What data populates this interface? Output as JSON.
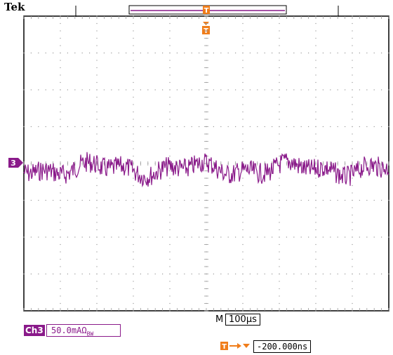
{
  "brand": "Tek",
  "channel": {
    "id": "3",
    "label": "Ch3",
    "scale": "50.0mAΩ",
    "bw_symbol": "BW",
    "color": "#8a1a8a"
  },
  "timebase": {
    "prefix": "M",
    "value": "100µs"
  },
  "trigger": {
    "marker": "T",
    "position": "-200.000ns",
    "color": "#f07d1a"
  },
  "graticule": {
    "divisions_x": 10,
    "divisions_y": 8,
    "grid_color": "#9a9a9a"
  },
  "waveform": {
    "baseline_division": 4.15,
    "noise_amplitude_div": 0.35,
    "samples": 520
  }
}
